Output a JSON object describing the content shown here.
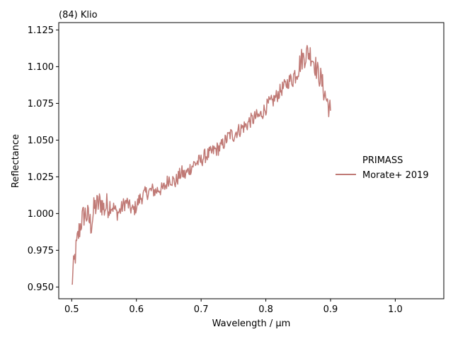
{
  "chart_data": {
    "type": "line",
    "title": "(84) Klio",
    "xlabel": "Wavelength / µm",
    "ylabel": "Reflectance",
    "xlim": [
      0.48,
      1.075
    ],
    "ylim": [
      0.942,
      1.13
    ],
    "xticks": [
      "0.5",
      "0.6",
      "0.7",
      "0.8",
      "0.9",
      "1.0"
    ],
    "yticks": [
      "0.950",
      "0.975",
      "1.000",
      "1.025",
      "1.050",
      "1.075",
      "1.100",
      "1.125"
    ],
    "grid": false,
    "legend": {
      "placement": "right",
      "title": "PRIMASS",
      "entries": [
        "Morate+ 2019"
      ]
    },
    "series": [
      {
        "name": "Morate+ 2019",
        "color": "#c07a76",
        "x": [
          0.5,
          0.505,
          0.51,
          0.515,
          0.52,
          0.525,
          0.53,
          0.535,
          0.54,
          0.545,
          0.55,
          0.555,
          0.56,
          0.565,
          0.57,
          0.575,
          0.58,
          0.585,
          0.59,
          0.595,
          0.6,
          0.605,
          0.61,
          0.615,
          0.62,
          0.625,
          0.63,
          0.635,
          0.64,
          0.645,
          0.65,
          0.655,
          0.66,
          0.665,
          0.67,
          0.675,
          0.68,
          0.685,
          0.69,
          0.695,
          0.7,
          0.705,
          0.71,
          0.715,
          0.72,
          0.725,
          0.73,
          0.735,
          0.74,
          0.745,
          0.75,
          0.755,
          0.76,
          0.765,
          0.77,
          0.775,
          0.78,
          0.785,
          0.79,
          0.795,
          0.8,
          0.805,
          0.81,
          0.815,
          0.82,
          0.825,
          0.83,
          0.835,
          0.84,
          0.845,
          0.85,
          0.855,
          0.86,
          0.865,
          0.87,
          0.875,
          0.88,
          0.885,
          0.89,
          0.895,
          0.9
        ],
        "y": [
          0.952,
          0.97,
          0.985,
          0.995,
          1.0,
          0.998,
          0.992,
          1.004,
          1.006,
          1.008,
          1.003,
          1.006,
          1.005,
          1.004,
          1.0,
          1.002,
          1.006,
          1.008,
          1.004,
          1.002,
          1.005,
          1.01,
          1.012,
          1.014,
          1.015,
          1.016,
          1.015,
          1.017,
          1.016,
          1.019,
          1.024,
          1.023,
          1.021,
          1.025,
          1.028,
          1.026,
          1.029,
          1.032,
          1.034,
          1.035,
          1.036,
          1.039,
          1.04,
          1.041,
          1.043,
          1.044,
          1.045,
          1.048,
          1.051,
          1.054,
          1.053,
          1.056,
          1.057,
          1.059,
          1.06,
          1.063,
          1.064,
          1.066,
          1.066,
          1.069,
          1.072,
          1.075,
          1.076,
          1.079,
          1.082,
          1.085,
          1.087,
          1.09,
          1.092,
          1.095,
          1.099,
          1.105,
          1.107,
          1.11,
          1.108,
          1.103,
          1.096,
          1.092,
          1.083,
          1.076,
          1.07
        ]
      }
    ]
  }
}
